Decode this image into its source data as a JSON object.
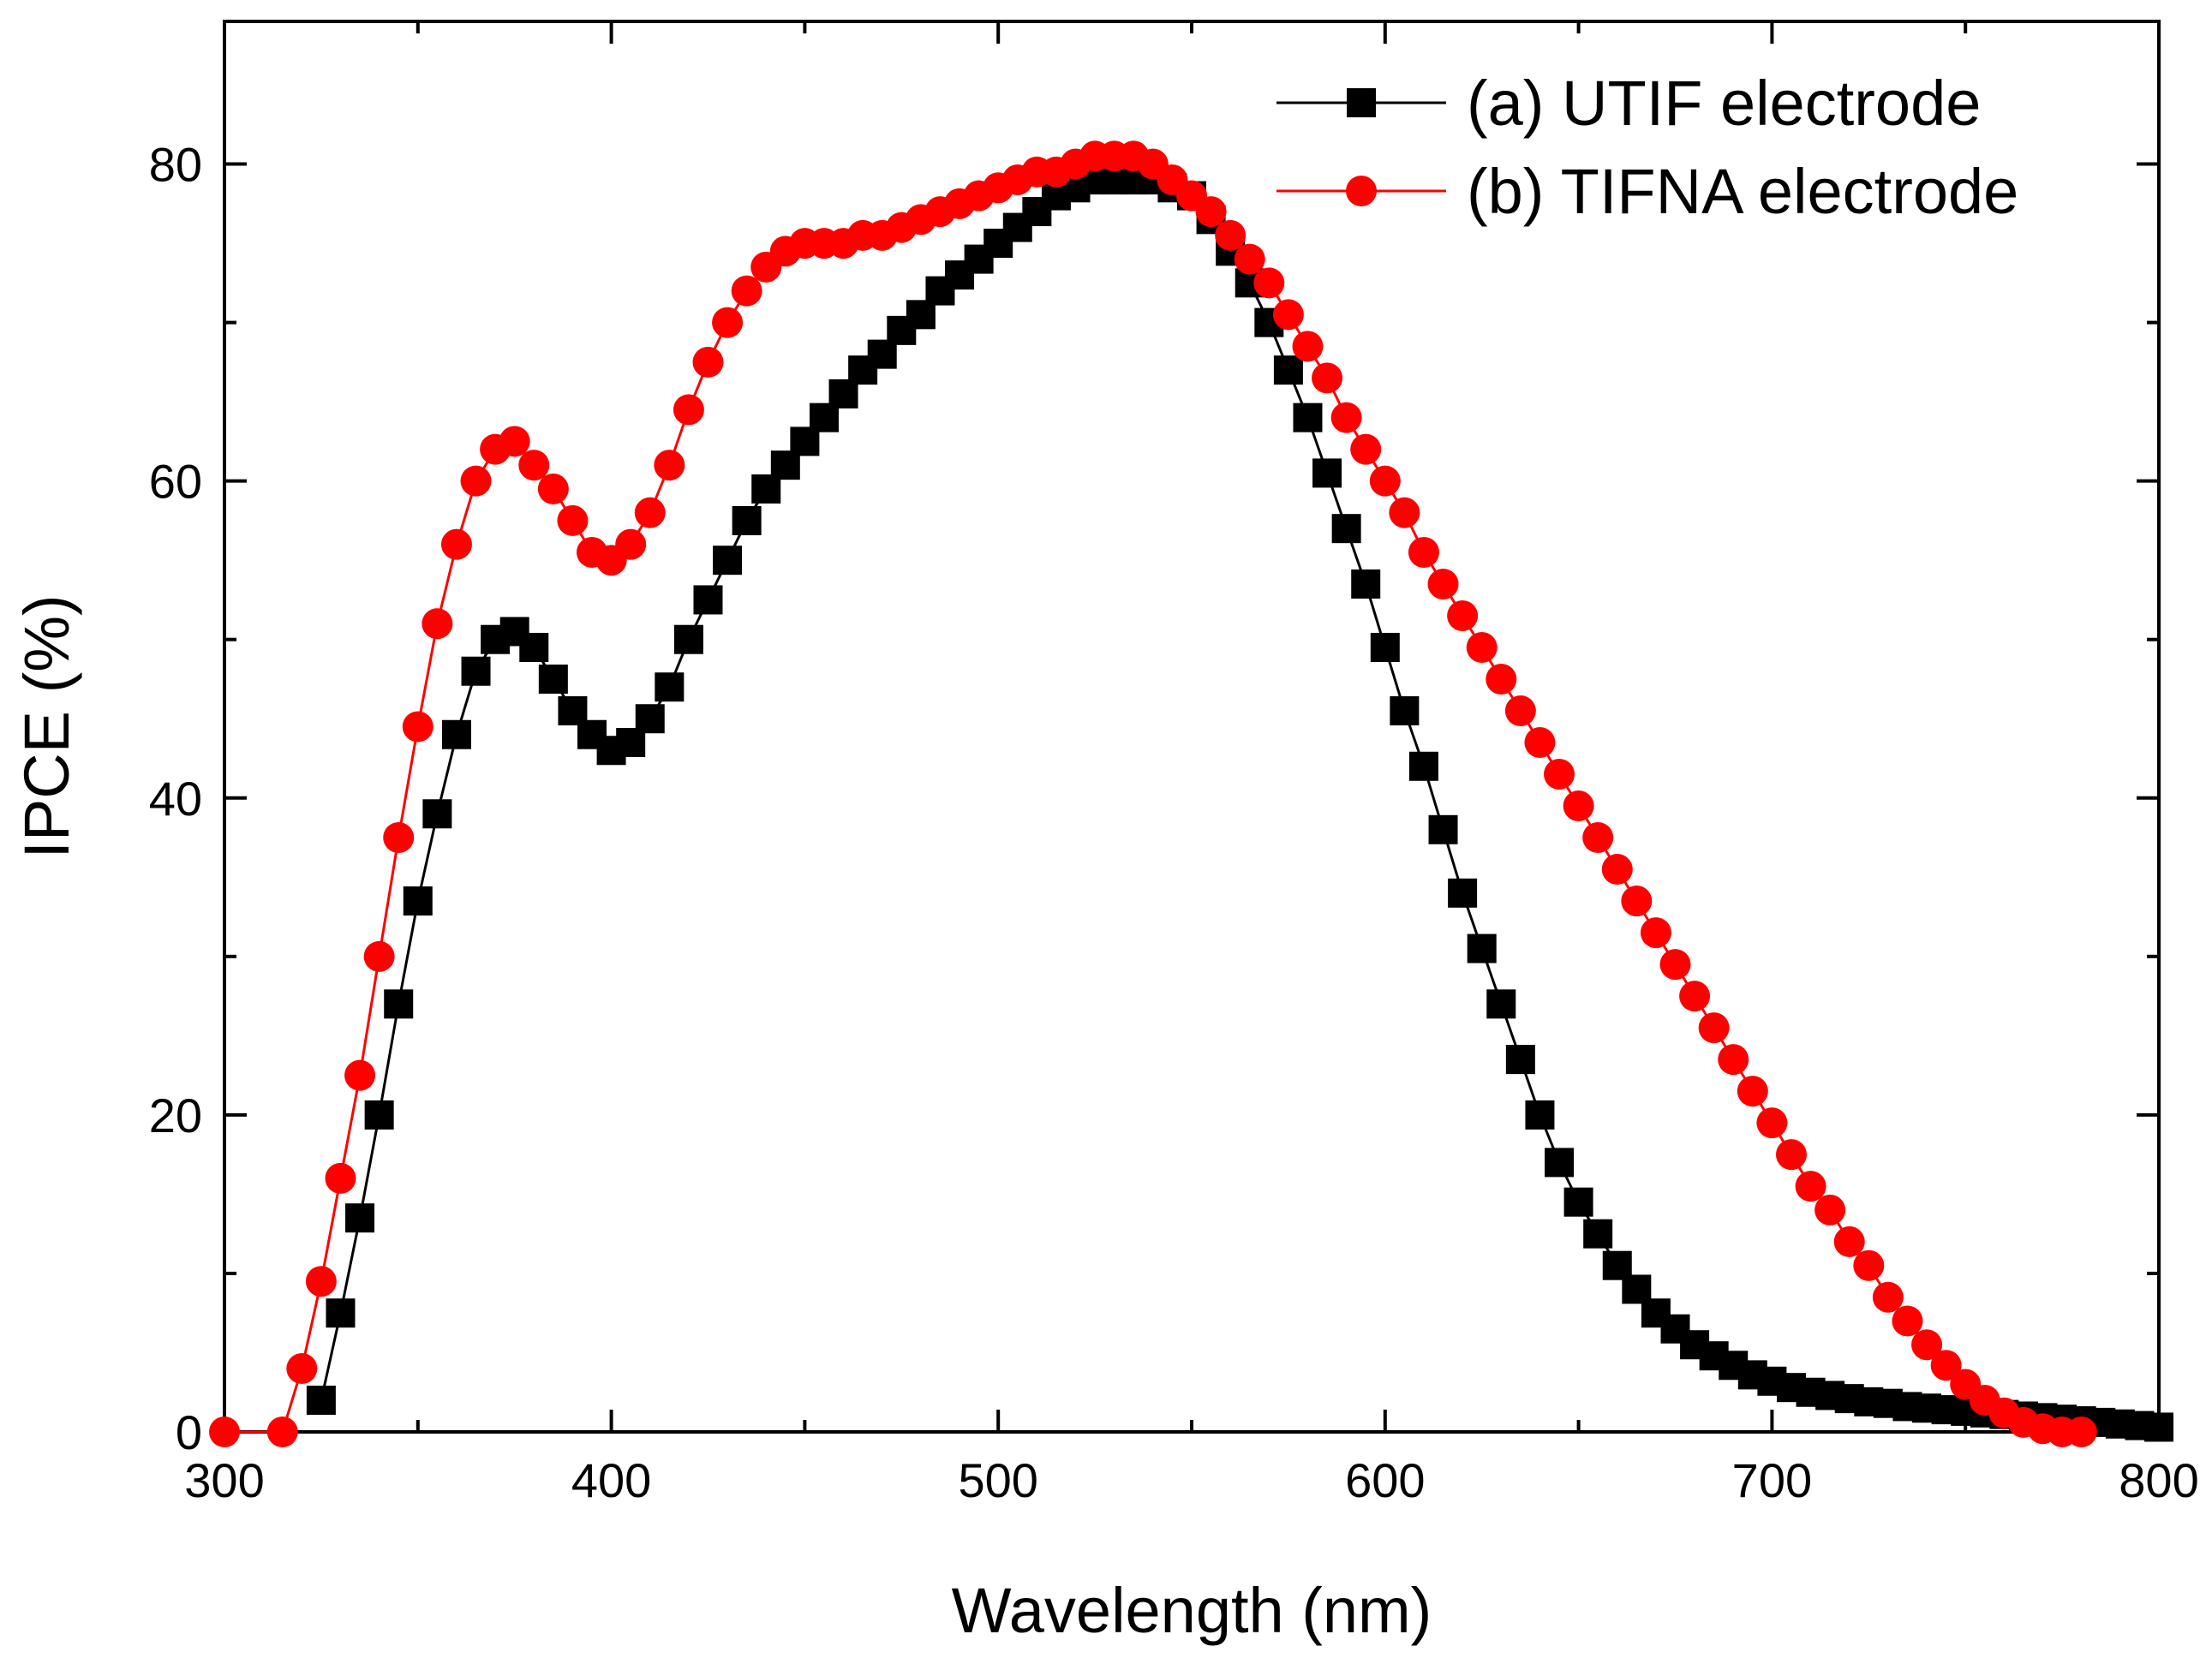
{
  "chart_data": {
    "type": "line",
    "title": "",
    "xlabel": "Wavelength (nm)",
    "ylabel": "IPCE (%)",
    "xlim": [
      300,
      800
    ],
    "ylim": [
      0,
      89
    ],
    "x_ticks": [
      300,
      400,
      500,
      600,
      700,
      800
    ],
    "y_ticks": [
      0,
      20,
      40,
      60,
      80
    ],
    "x_tick_labels": [
      "300",
      "400",
      "500",
      "600",
      "700",
      "800"
    ],
    "y_tick_labels": [
      "0",
      "20",
      "40",
      "60",
      "80"
    ],
    "grid": false,
    "legend_position": "top-right",
    "series": [
      {
        "name": "(a) UTIF electrode",
        "color": "#000000",
        "marker": "square",
        "x": [
          325,
          330,
          335,
          340,
          345,
          350,
          355,
          360,
          365,
          370,
          375,
          380,
          385,
          390,
          395,
          400,
          405,
          410,
          415,
          420,
          425,
          430,
          435,
          440,
          445,
          450,
          455,
          460,
          465,
          470,
          475,
          480,
          485,
          490,
          495,
          500,
          505,
          510,
          515,
          520,
          525,
          530,
          535,
          540,
          545,
          550,
          555,
          560,
          565,
          570,
          575,
          580,
          585,
          590,
          595,
          600,
          605,
          610,
          615,
          620,
          625,
          630,
          635,
          640,
          645,
          650,
          655,
          660,
          665,
          670,
          675,
          680,
          685,
          690,
          695,
          700,
          705,
          710,
          715,
          720,
          725,
          730,
          735,
          740,
          745,
          750,
          755,
          760,
          765,
          770,
          775,
          780,
          785,
          790,
          795,
          800
        ],
        "values": [
          2.0,
          7.5,
          13.5,
          20.0,
          27.0,
          33.5,
          39.0,
          44.0,
          48.0,
          50.0,
          50.5,
          49.5,
          47.5,
          45.5,
          44.0,
          43.0,
          43.5,
          45.0,
          47.0,
          50.0,
          52.5,
          55.0,
          57.5,
          59.5,
          61.0,
          62.5,
          64.0,
          65.5,
          67.0,
          68.0,
          69.5,
          70.5,
          72.0,
          73.0,
          74.0,
          75.0,
          76.0,
          77.0,
          78.0,
          78.5,
          79.0,
          79.0,
          79.0,
          79.0,
          78.5,
          78.0,
          76.5,
          74.5,
          72.5,
          70.0,
          67.0,
          64.0,
          60.5,
          57.0,
          53.5,
          49.5,
          45.5,
          42.0,
          38.0,
          34.0,
          30.5,
          27.0,
          23.5,
          20.0,
          17.0,
          14.5,
          12.5,
          10.5,
          9.0,
          7.5,
          6.5,
          5.5,
          4.8,
          4.2,
          3.6,
          3.2,
          2.8,
          2.5,
          2.3,
          2.1,
          1.9,
          1.8,
          1.6,
          1.5,
          1.4,
          1.3,
          1.2,
          1.1,
          1.0,
          0.9,
          0.8,
          0.7,
          0.6,
          0.5,
          0.4,
          0.3
        ]
      },
      {
        "name": "(b) TIFNA electrode",
        "color": "#ff0000",
        "marker": "circle",
        "x": [
          300,
          315,
          320,
          325,
          330,
          335,
          340,
          345,
          350,
          355,
          360,
          365,
          370,
          375,
          380,
          385,
          390,
          395,
          400,
          405,
          410,
          415,
          420,
          425,
          430,
          435,
          440,
          445,
          450,
          455,
          460,
          465,
          470,
          475,
          480,
          485,
          490,
          495,
          500,
          505,
          510,
          515,
          520,
          525,
          530,
          535,
          540,
          545,
          550,
          555,
          560,
          565,
          570,
          575,
          580,
          585,
          590,
          595,
          600,
          605,
          610,
          615,
          620,
          625,
          630,
          635,
          640,
          645,
          650,
          655,
          660,
          665,
          670,
          675,
          680,
          685,
          690,
          695,
          700,
          705,
          710,
          715,
          720,
          725,
          730,
          735,
          740,
          745,
          750,
          755,
          760,
          765,
          770,
          775,
          780
        ],
        "values": [
          0.0,
          0.0,
          4.0,
          9.5,
          16.0,
          22.5,
          30.0,
          37.5,
          44.5,
          51.0,
          56.0,
          60.0,
          62.0,
          62.5,
          61.0,
          59.5,
          57.5,
          55.5,
          55.0,
          56.0,
          58.0,
          61.0,
          64.5,
          67.5,
          70.0,
          72.0,
          73.5,
          74.5,
          75.0,
          75.0,
          75.0,
          75.5,
          75.5,
          76.0,
          76.5,
          77.0,
          77.5,
          78.0,
          78.5,
          79.0,
          79.5,
          79.5,
          80.0,
          80.5,
          80.5,
          80.5,
          80.0,
          79.0,
          78.0,
          77.0,
          75.5,
          74.0,
          72.5,
          70.5,
          68.5,
          66.5,
          64.0,
          62.0,
          60.0,
          58.0,
          55.5,
          53.5,
          51.5,
          49.5,
          47.5,
          45.5,
          43.5,
          41.5,
          39.5,
          37.5,
          35.5,
          33.5,
          31.5,
          29.5,
          27.5,
          25.5,
          23.5,
          21.5,
          19.5,
          17.5,
          15.5,
          14.0,
          12.0,
          10.5,
          8.5,
          7.0,
          5.5,
          4.2,
          3.0,
          2.0,
          1.2,
          0.6,
          0.2,
          0.0,
          0.0
        ]
      }
    ]
  }
}
